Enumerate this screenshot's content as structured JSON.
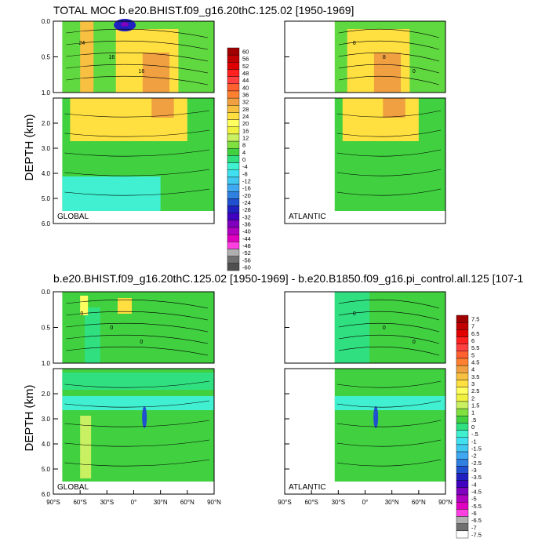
{
  "chart_data": [
    {
      "type": "heatmap",
      "title": "TOTAL MOC b.e20.BHIST.f09_g16.20thC.125.02 [1950-1969]",
      "ylabel": "DEPTH (km)",
      "panels": [
        {
          "label": "GLOBAL",
          "xlim": [
            -90,
            90
          ],
          "data_extent": [
            -80,
            90
          ]
        },
        {
          "label": "ATLANTIC",
          "xlim": [
            -90,
            90
          ],
          "data_extent": [
            -34,
            90
          ]
        }
      ],
      "upper_yticks": [
        "0.0",
        "0.5",
        "1.0"
      ],
      "lower_yticks": [
        "2.0",
        "3.0",
        "4.0",
        "5.0",
        "6.0"
      ],
      "upper_ylim": [
        0,
        1
      ],
      "lower_ylim": [
        1,
        6
      ],
      "contour_labels": [
        "24",
        "16",
        "16",
        "8",
        "8",
        "0",
        "0",
        "8",
        "16",
        "16"
      ],
      "colorbar": {
        "labels": [
          "60",
          "56",
          "52",
          "48",
          "44",
          "40",
          "36",
          "32",
          "28",
          "24",
          "20",
          "16",
          "12",
          "8",
          "4",
          "0",
          "-4",
          "-8",
          "-12",
          "-16",
          "-20",
          "-24",
          "-28",
          "-32",
          "-36",
          "-40",
          "-44",
          "-48",
          "-52",
          "-56",
          "-60"
        ],
        "colors": [
          "#a00000",
          "#c00000",
          "#e00000",
          "#ff2020",
          "#ff4040",
          "#ff6030",
          "#ff8030",
          "#f0a040",
          "#f8c040",
          "#ffe040",
          "#ffff60",
          "#f0f040",
          "#c8f060",
          "#80e040",
          "#40d040",
          "#30e080",
          "#40f0d0",
          "#40e0f0",
          "#40c8f0",
          "#40a8f0",
          "#3080e0",
          "#2050d0",
          "#2020c0",
          "#4000c0",
          "#8000c0",
          "#b000c0",
          "#e000c0",
          "#ff40e0",
          "#b0b0b0",
          "#707070",
          "#505050"
        ]
      }
    },
    {
      "type": "heatmap",
      "title": "b.e20.BHIST.f09_g16.20thC.125.02 [1950-1969] - b.e20.B1850.f09_g16.pi_control.all.125 [107-1",
      "ylabel": "DEPTH (km)",
      "panels": [
        {
          "label": "GLOBAL",
          "xlim": [
            -90,
            90
          ],
          "data_extent": [
            -80,
            90
          ]
        },
        {
          "label": "ATLANTIC",
          "xlim": [
            -90,
            90
          ],
          "data_extent": [
            -34,
            90
          ]
        }
      ],
      "upper_yticks": [
        "0.0",
        "0.5",
        "1.0"
      ],
      "lower_yticks": [
        "2.0",
        "3.0",
        "4.0",
        "5.0",
        "6.0"
      ],
      "xticks": [
        "90°S",
        "60°S",
        "30°S",
        "0°",
        "30°N",
        "60°N",
        "90°N"
      ],
      "upper_ylim": [
        0,
        1
      ],
      "lower_ylim": [
        1,
        6
      ],
      "contour_labels": [
        "0",
        "0",
        "0",
        "0",
        "0",
        "0",
        "0",
        "0"
      ],
      "colorbar": {
        "labels": [
          "7.5",
          "7",
          "6.5",
          "6",
          "5.5",
          "5",
          "4.5",
          "4",
          "3.5",
          "3",
          "2.5",
          "2",
          "1.5",
          "1",
          ".5",
          "0",
          "-.5",
          "-1",
          "-1.5",
          "-2",
          "-2.5",
          "-3",
          "-3.5",
          "-4",
          "-4.5",
          "-5",
          "-5.5",
          "-6",
          "-6.5",
          "-7",
          "-7.5"
        ],
        "colors": [
          "#a00000",
          "#c00000",
          "#e00000",
          "#ff2020",
          "#ff4040",
          "#ff6030",
          "#ff8030",
          "#f0a040",
          "#f8c040",
          "#ffe040",
          "#ffff60",
          "#f0f040",
          "#c8f060",
          "#80e040",
          "#40d040",
          "#30e080",
          "#40f0d0",
          "#40e0f0",
          "#40c8f0",
          "#40a8f0",
          "#3080e0",
          "#2050d0",
          "#2020c0",
          "#4000c0",
          "#8000c0",
          "#b000c0",
          "#e000c0",
          "#ff40e0",
          "#b0b0b0",
          "#707070",
          "#ffffff"
        ]
      }
    }
  ]
}
